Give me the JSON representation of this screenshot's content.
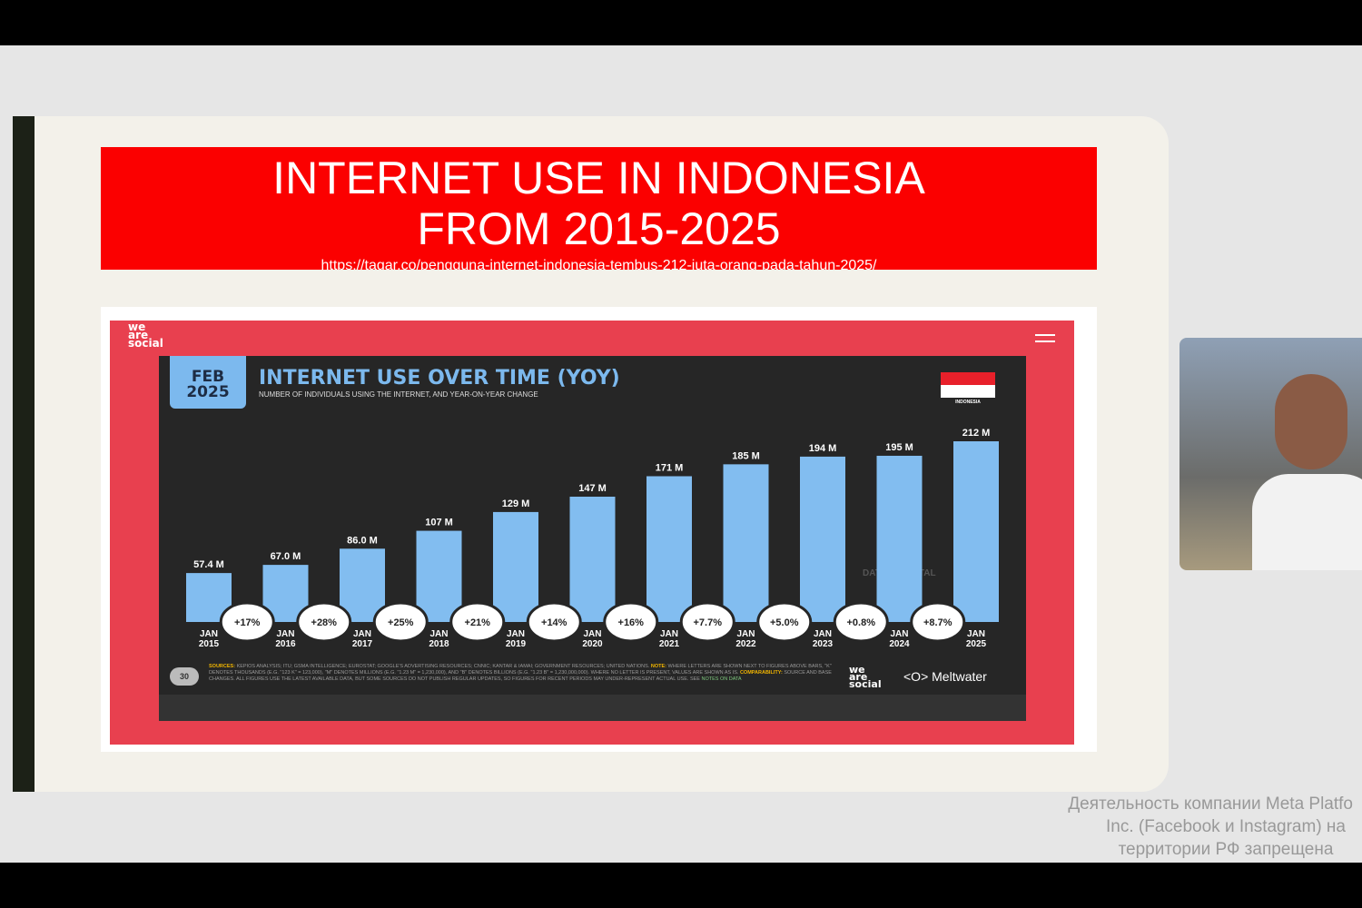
{
  "slide": {
    "title": "INTERNET USE IN INDONESIA FROM 2015-2025",
    "url": "https://tagar.co/pengguna-internet-indonesia-tembus-212-juta-orang-pada-tahun-2025/"
  },
  "card": {
    "logo": "we are social",
    "date_badge": [
      "FEB",
      "2025"
    ],
    "flag_label": "INDONESIA",
    "watermark": "DATAREPORTAL",
    "page_number": "30",
    "sources_label": "SOURCES:",
    "sources_text": "KEPIOS ANALYSIS; ITU; GSMA INTELLIGENCE; EUROSTAT; GOOGLE'S ADVERTISING RESOURCES; CNNIC; KANTAR & IAMAI; GOVERNMENT RESOURCES; UNITED NATIONS.",
    "note_label": "NOTE:",
    "note_text": "WHERE LETTERS ARE SHOWN NEXT TO FIGURES ABOVE BARS, \"K\" DENOTES THOUSANDS (E.G. \"123 K\" = 123,000), \"M\" DENOTES MILLIONS (E.G. \"1.23 M\" = 1,230,000), AND \"B\" DENOTES BILLIONS (E.G. \"1.23 B\" = 1,230,000,000). WHERE NO LETTER IS PRESENT, VALUES ARE SHOWN AS IS.",
    "comparability_label": "COMPARABILITY:",
    "comparability_text": "SOURCE AND BASE CHANGES. ALL FIGURES USE THE LATEST AVAILABLE DATA, BUT SOME SOURCES DO NOT PUBLISH REGULAR UPDATES, SO FIGURES FOR RECENT PERIODS MAY UNDER-REPRESENT ACTUAL USE. SEE",
    "notes_link": "NOTES ON DATA",
    "footer_logo": "we are social",
    "partner": "Meltwater"
  },
  "chart_data": {
    "type": "bar",
    "title": "INTERNET USE OVER TIME (YOY)",
    "subtitle": "NUMBER OF INDIVIDUALS USING THE INTERNET, AND YEAR-ON-YEAR CHANGE",
    "categories": [
      "JAN 2015",
      "JAN 2016",
      "JAN 2017",
      "JAN 2018",
      "JAN 2019",
      "JAN 2020",
      "JAN 2021",
      "JAN 2022",
      "JAN 2023",
      "JAN 2024",
      "JAN 2025"
    ],
    "values": [
      57.4,
      67.0,
      86.0,
      107,
      129,
      147,
      171,
      185,
      194,
      195,
      212
    ],
    "value_labels": [
      "57.4 M",
      "67.0 M",
      "86.0 M",
      "107 M",
      "129 M",
      "147 M",
      "171 M",
      "185 M",
      "194 M",
      "195 M",
      "212 M"
    ],
    "yoy_changes": [
      "+17%",
      "+28%",
      "+25%",
      "+21%",
      "+14%",
      "+16%",
      "+7.7%",
      "+5.0%",
      "+0.8%",
      "+8.7%"
    ],
    "unit": "M",
    "ylim": [
      0,
      212
    ],
    "grid": false,
    "colors": {
      "bar": "#82bdf0",
      "background": "#262626"
    }
  },
  "webcam": {
    "label": "participant video"
  },
  "notice": [
    "Деятельность компании Meta Platfo",
    "Inc. (Facebook и Instagram) на",
    "территории РФ запрещена"
  ]
}
